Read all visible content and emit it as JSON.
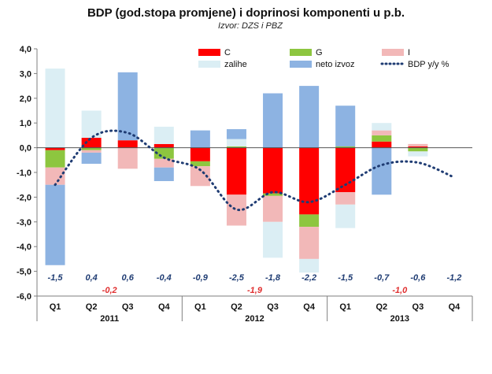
{
  "chart_data": {
    "type": "bar",
    "title": "BDP (god.stopa promjene) i doprinosi komponenti u p.b.",
    "subtitle": "Izvor: DZS i PBZ",
    "ylim": [
      -6,
      4
    ],
    "y_ticks": [
      "4,0",
      "3,0",
      "2,0",
      "1,0",
      "0,0",
      "-1,0",
      "-2,0",
      "-3,0",
      "-4,0",
      "-5,0",
      "-6,0"
    ],
    "categories": [
      "Q1",
      "Q2",
      "Q3",
      "Q4",
      "Q1",
      "Q2",
      "Q3",
      "Q4",
      "Q1",
      "Q2",
      "Q3",
      "Q4"
    ],
    "years": [
      "2011",
      "2012",
      "2013"
    ],
    "series": [
      {
        "name": "C",
        "color": "#ff0000",
        "values": [
          -0.1,
          0.4,
          0.3,
          0.15,
          -0.55,
          -1.9,
          -1.85,
          -2.7,
          -1.8,
          0.25,
          0.05,
          null
        ]
      },
      {
        "name": "G",
        "color": "#8dc63f",
        "values": [
          -0.7,
          -0.1,
          0.0,
          -0.45,
          -0.2,
          0.05,
          -0.1,
          -0.5,
          0.05,
          0.25,
          -0.15,
          null
        ]
      },
      {
        "name": "I",
        "color": "#f2b8b8",
        "values": [
          -0.7,
          -0.1,
          -0.85,
          -0.35,
          -0.8,
          -1.25,
          -1.05,
          -1.3,
          -0.5,
          0.2,
          0.1,
          null
        ]
      },
      {
        "name": "zalihe",
        "color": "#dbeef4",
        "values": [
          3.2,
          1.1,
          0.0,
          0.7,
          0.0,
          0.3,
          -1.45,
          -0.55,
          -0.95,
          0.3,
          -0.2,
          null
        ]
      },
      {
        "name": "neto izvoz",
        "color": "#8db3e2",
        "values": [
          -3.25,
          -0.45,
          2.75,
          -0.55,
          0.7,
          0.4,
          2.2,
          2.5,
          1.65,
          -1.9,
          0.0,
          null
        ]
      },
      {
        "name": "BDP y/y %",
        "color": "#1f3c73",
        "values": [
          -1.5,
          0.4,
          0.6,
          -0.4,
          -0.9,
          -2.5,
          -1.8,
          -2.2,
          -1.5,
          -0.7,
          -0.6,
          -1.2
        ]
      }
    ],
    "data_labels": [
      "-1,5",
      "0,4",
      "0,6",
      "-0,4",
      "-0,9",
      "-2,5",
      "-1,8",
      "-2,2",
      "-1,5",
      "-0,7",
      "-0,6",
      "-1,2"
    ],
    "sub_labels": [
      {
        "index": 1,
        "text": "-0,2"
      },
      {
        "index": 5,
        "text": "-1,9"
      },
      {
        "index": 9,
        "text": "-1,0"
      }
    ],
    "legend": [
      "C",
      "G",
      "I",
      "zalihe",
      "neto izvoz",
      "BDP y/y %"
    ],
    "legend_position": "top-right"
  }
}
